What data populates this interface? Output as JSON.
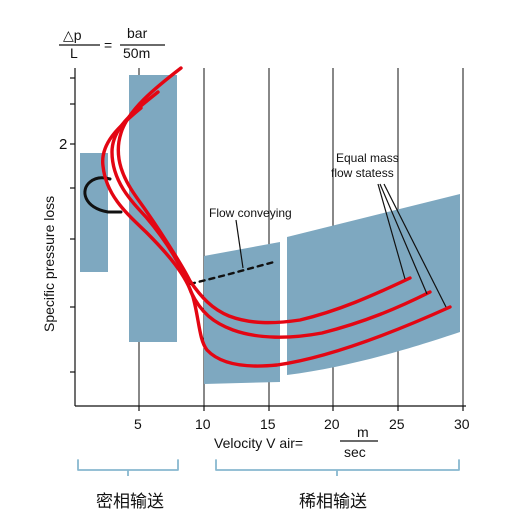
{
  "colors": {
    "background": "#ffffff",
    "axis": "#111111",
    "grid": "#111111",
    "region_fill": "#7ea8c0",
    "curve": "#e30613",
    "label_text": "#111111",
    "bracket": "#88b8cf"
  },
  "header": {
    "ratio_delta_p": "△p",
    "ratio_length": "L",
    "equals": "=",
    "unit_top": "bar",
    "unit_bottom": "50m"
  },
  "axes": {
    "y_label": "Specific pressure loss",
    "y_tick_label": "2",
    "x_label_main": "Velocity  V air=",
    "x_unit_top": "m",
    "x_unit_bottom": "sec",
    "x_ticks": [
      "5",
      "10",
      "15",
      "20",
      "25",
      "30"
    ]
  },
  "annotations": {
    "equal_mass_line1": "Equal mass",
    "equal_mass_line2": "flow statess",
    "flow_conveying": "Flow conveying"
  },
  "zones": {
    "dense_phase": "密相输送",
    "dilute_phase": "稀相输送"
  }
}
